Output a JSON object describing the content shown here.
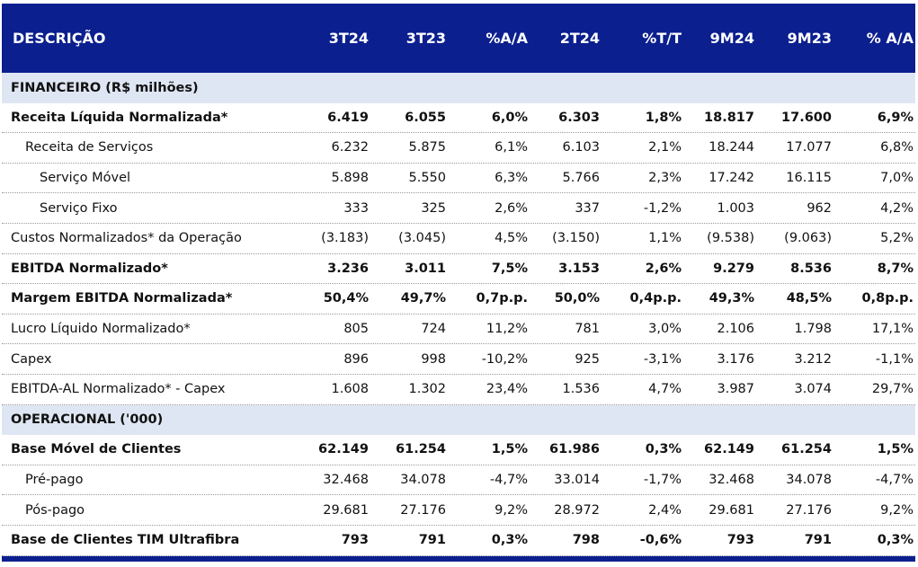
{
  "header": [
    "DESCRIÇÃO",
    "3T24",
    "3T23",
    "%A/A",
    "2T24",
    "%T/T",
    "9M24",
    "9M23",
    "% A/A"
  ],
  "rows": [
    {
      "type": "section",
      "cells": [
        "FINANCEIRO (R$ milhões)"
      ]
    },
    {
      "type": "bold",
      "indent": 0,
      "cells": [
        "Receita Líquida Normalizada*",
        "6.419",
        "6.055",
        "6,0%",
        "6.303",
        "1,8%",
        "18.817",
        "17.600",
        "6,9%"
      ]
    },
    {
      "type": "normal",
      "indent": 1,
      "cells": [
        "Receita de Serviços",
        "6.232",
        "5.875",
        "6,1%",
        "6.103",
        "2,1%",
        "18.244",
        "17.077",
        "6,8%"
      ]
    },
    {
      "type": "normal",
      "indent": 2,
      "cells": [
        "Serviço Móvel",
        "5.898",
        "5.550",
        "6,3%",
        "5.766",
        "2,3%",
        "17.242",
        "16.115",
        "7,0%"
      ]
    },
    {
      "type": "normal",
      "indent": 2,
      "cells": [
        "Serviço Fixo",
        "333",
        "325",
        "2,6%",
        "337",
        "-1,2%",
        "1.003",
        "962",
        "4,2%"
      ]
    },
    {
      "type": "normal",
      "indent": 0,
      "cells": [
        "Custos Normalizados* da Operação",
        "(3.183)",
        "(3.045)",
        "4,5%",
        "(3.150)",
        "1,1%",
        "(9.538)",
        "(9.063)",
        "5,2%"
      ]
    },
    {
      "type": "bold",
      "indent": 0,
      "cells": [
        "EBITDA Normalizado*",
        "3.236",
        "3.011",
        "7,5%",
        "3.153",
        "2,6%",
        "9.279",
        "8.536",
        "8,7%"
      ]
    },
    {
      "type": "bold",
      "indent": 0,
      "cells": [
        "Margem EBITDA Normalizada*",
        "50,4%",
        "49,7%",
        "0,7p.p.",
        "50,0%",
        "0,4p.p.",
        "49,3%",
        "48,5%",
        "0,8p.p."
      ]
    },
    {
      "type": "normal",
      "indent": 0,
      "cells": [
        "Lucro Líquido Normalizado*",
        "805",
        "724",
        "11,2%",
        "781",
        "3,0%",
        "2.106",
        "1.798",
        "17,1%"
      ]
    },
    {
      "type": "normal",
      "indent": 0,
      "cells": [
        "Capex",
        "896",
        "998",
        "-10,2%",
        "925",
        "-3,1%",
        "3.176",
        "3.212",
        "-1,1%"
      ]
    },
    {
      "type": "normal",
      "indent": 0,
      "cells": [
        "EBITDA-AL Normalizado* - Capex",
        "1.608",
        "1.302",
        "23,4%",
        "1.536",
        "4,7%",
        "3.987",
        "3.074",
        "29,7%"
      ]
    },
    {
      "type": "section",
      "cells": [
        "OPERACIONAL ('000)"
      ]
    },
    {
      "type": "bold",
      "indent": 0,
      "cells": [
        "Base Móvel de Clientes",
        "62.149",
        "61.254",
        "1,5%",
        "61.986",
        "0,3%",
        "62.149",
        "61.254",
        "1,5%"
      ]
    },
    {
      "type": "normal",
      "indent": 1,
      "cells": [
        "Pré-pago",
        "32.468",
        "34.078",
        "-4,7%",
        "33.014",
        "-1,7%",
        "32.468",
        "34.078",
        "-4,7%"
      ]
    },
    {
      "type": "normal",
      "indent": 1,
      "cells": [
        "Pós-pago",
        "29.681",
        "27.176",
        "9,2%",
        "28.972",
        "2,4%",
        "29.681",
        "27.176",
        "9,2%"
      ]
    },
    {
      "type": "bold",
      "indent": 0,
      "cells": [
        "Base de Clientes TIM Ultrafibra",
        "793",
        "791",
        "0,3%",
        "798",
        "-0,6%",
        "793",
        "791",
        "0,3%"
      ]
    }
  ],
  "colors": {
    "header_bg": "#0b1f8f",
    "section_bg": "#dfe6f3"
  }
}
